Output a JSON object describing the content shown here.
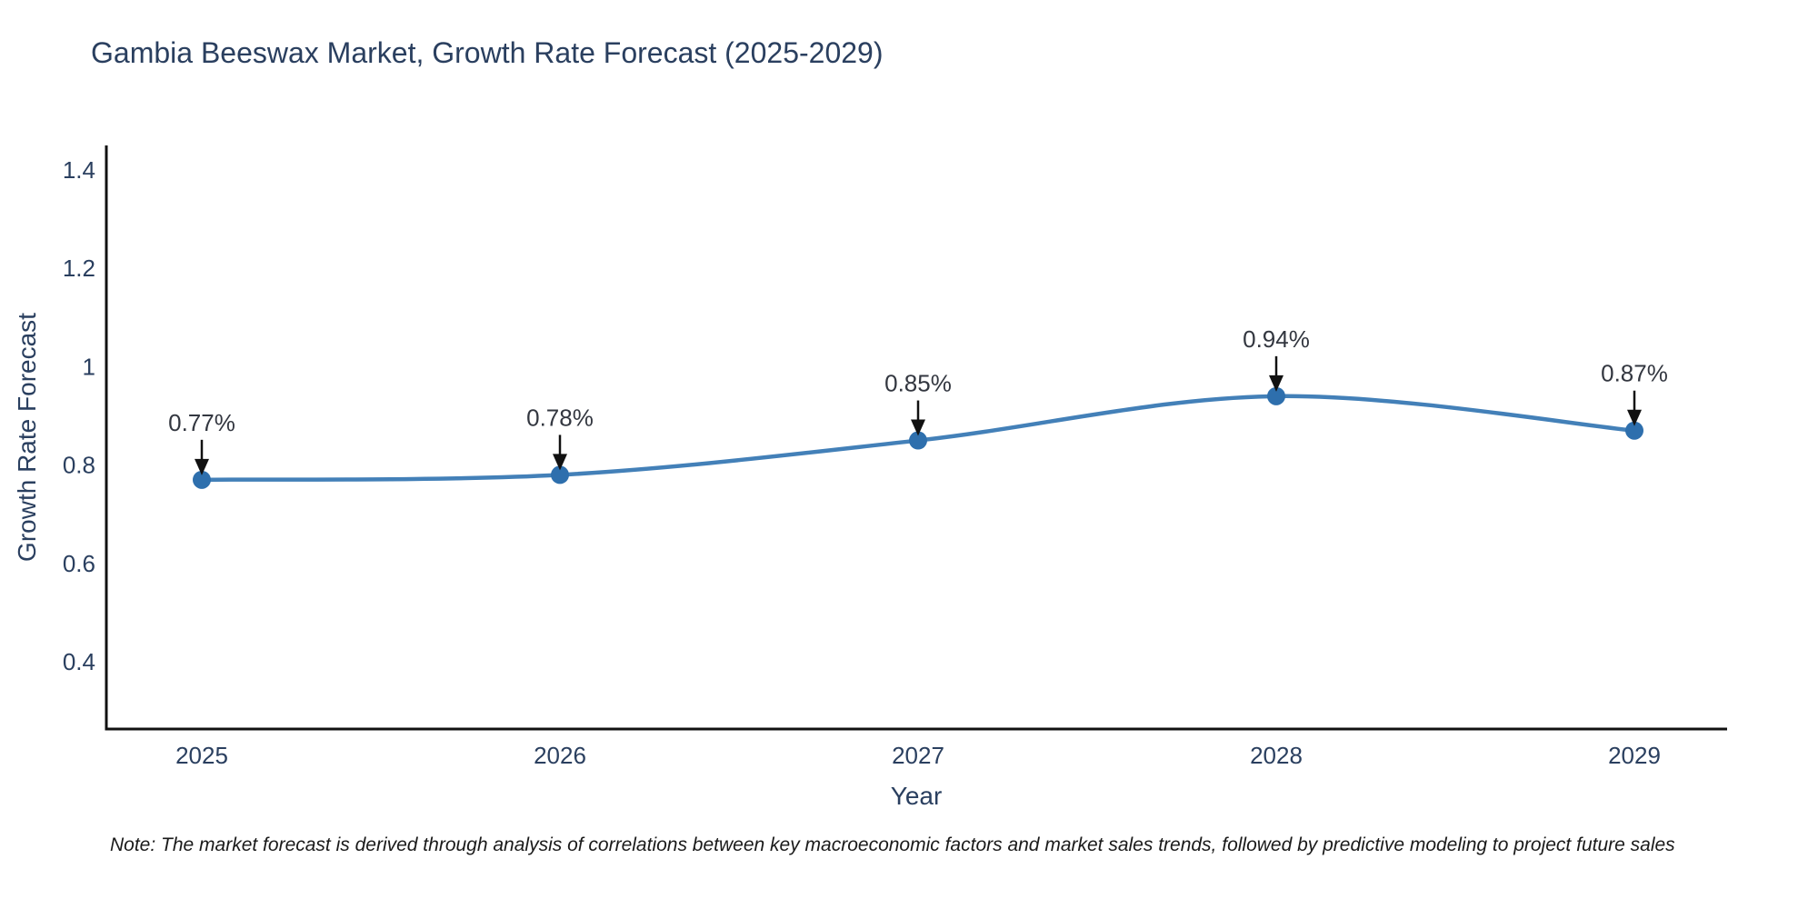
{
  "title": "Gambia Beeswax Market, Growth Rate Forecast (2025-2029)",
  "note": "Note: The market forecast is derived through analysis of correlations between key macroeconomic factors and market sales trends, followed by predictive modeling to project future sales",
  "chart_data": {
    "type": "line",
    "title": "Gambia Beeswax Market, Growth Rate Forecast (2025-2029)",
    "xlabel": "Year",
    "ylabel": "Growth Rate Forecast",
    "categories": [
      "2025",
      "2026",
      "2027",
      "2028",
      "2029"
    ],
    "values": [
      0.77,
      0.78,
      0.85,
      0.94,
      0.87
    ],
    "point_labels": [
      "0.77%",
      "0.78%",
      "0.85%",
      "0.94%",
      "0.87%"
    ],
    "yticks": [
      1.4,
      1.2,
      1,
      0.8,
      0.6,
      0.4
    ],
    "ylim": [
      0.26,
      1.45
    ],
    "grid": false,
    "legend": "none",
    "line_shape": "spline",
    "line_color": "#4380b8",
    "marker_color": "#2e6fad",
    "axis_color": "#111111",
    "text_color": "#2a3f5f",
    "annotation_text_color": "#333740",
    "annotation_arrow_color": "#111111",
    "background_color": "#ffffff"
  }
}
